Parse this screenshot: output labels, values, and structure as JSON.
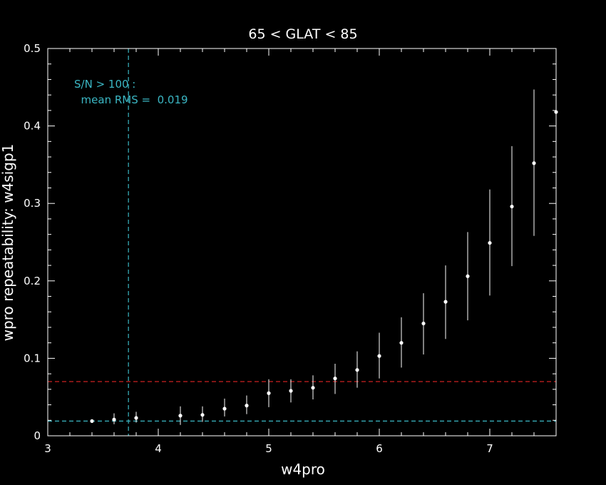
{
  "chart_data": {
    "type": "scatter",
    "title": "65 < GLAT < 85",
    "xlabel": "w4pro",
    "ylabel": "wpro repeatability: w4sigp1",
    "xlim": [
      3,
      7.6
    ],
    "ylim": [
      0,
      0.5
    ],
    "xticks": [
      "3",
      "4",
      "5",
      "6",
      "7"
    ],
    "yticks": [
      "0",
      "0.1",
      "0.2",
      "0.3",
      "0.4",
      "0.5"
    ],
    "grid": false,
    "series": [
      {
        "x": [
          3.4,
          3.6,
          3.8,
          4.2,
          4.4,
          4.6,
          4.8,
          5.0,
          5.2,
          5.4,
          5.6,
          5.8,
          6.0,
          6.2,
          6.4,
          6.6,
          6.8,
          7.0,
          7.2,
          7.4,
          7.6
        ],
        "y": [
          0.019,
          0.021,
          0.023,
          0.026,
          0.027,
          0.035,
          0.039,
          0.055,
          0.058,
          0.062,
          0.074,
          0.085,
          0.103,
          0.12,
          0.145,
          0.173,
          0.206,
          0.249,
          0.296,
          0.352,
          0.418
        ],
        "err_low": [
          0.017,
          0.015,
          0.017,
          0.014,
          0.018,
          0.025,
          0.028,
          0.037,
          0.043,
          0.047,
          0.054,
          0.062,
          0.074,
          0.088,
          0.105,
          0.125,
          0.149,
          0.181,
          0.219,
          0.258,
          0.418
        ],
        "err_high": [
          0.021,
          0.029,
          0.031,
          0.038,
          0.038,
          0.048,
          0.052,
          0.073,
          0.073,
          0.078,
          0.093,
          0.109,
          0.133,
          0.153,
          0.184,
          0.22,
          0.263,
          0.318,
          0.374,
          0.447,
          0.418
        ],
        "color": "#ffffff"
      }
    ],
    "reference_lines": [
      {
        "orientation": "horizontal",
        "value": 0.07,
        "color": "#cc2222",
        "style": "dashed"
      },
      {
        "orientation": "horizontal",
        "value": 0.019,
        "color": "#3bb7c4",
        "style": "dashed"
      },
      {
        "orientation": "vertical",
        "value": 3.73,
        "color": "#3bb7c4",
        "style": "dashed"
      }
    ],
    "annotation": {
      "line1": "S/N > 100 :",
      "line2": "  mean RMS =  0.019",
      "color": "#3bb7c4",
      "placement": "top-left"
    }
  }
}
